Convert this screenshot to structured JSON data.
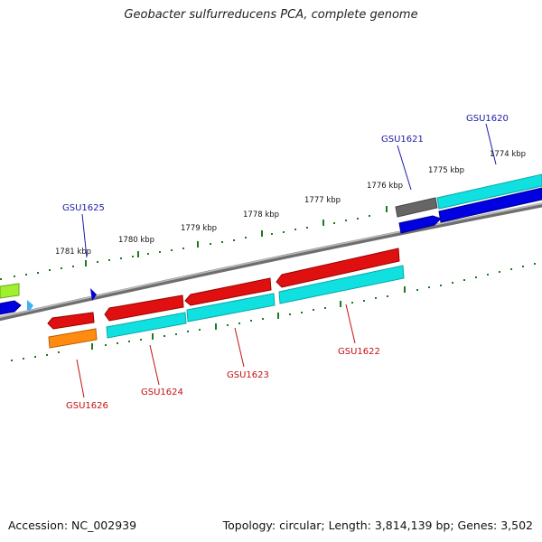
{
  "title": "Geobacter sulfurreducens PCA, complete genome",
  "footer": {
    "accession": "Accession: NC_002939",
    "summary": "Topology: circular; Length: 3,814,139 bp; Genes: 3,502"
  },
  "scale_labels": [
    "1781 kbp",
    "1780 kbp",
    "1779 kbp",
    "1778 kbp",
    "1777 kbp",
    "1776 kbp",
    "1775 kbp",
    "1774 kbp"
  ],
  "genes_top": [
    "GSU1625",
    "GSU1621",
    "GSU1620"
  ],
  "genes_bottom": [
    "GSU1626",
    "GSU1624",
    "GSU1623",
    "GSU1622"
  ],
  "colors": {
    "backbone": "#8c8c8c",
    "tick": "#1e7a1e",
    "forward_gene": "#0000e0",
    "reverse_gene": "#e01010",
    "cds_cyan": "#10e0e0",
    "cds_gray": "#666666",
    "cds_orange": "#ff8c10",
    "cds_lime": "#a0f030",
    "cds_light_blue": "#40b0f0"
  }
}
